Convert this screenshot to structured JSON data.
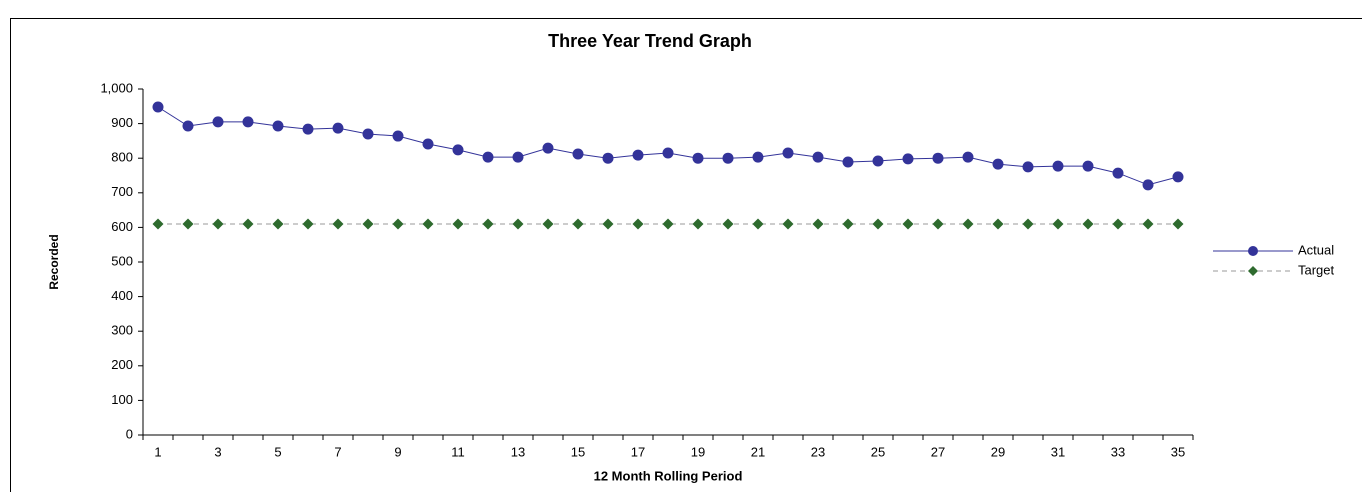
{
  "chart_data": {
    "type": "line",
    "title": "Three Year Trend Graph",
    "x_label": "12 Month Rolling Period",
    "y_label": "Recorded",
    "categories": [
      "1",
      null,
      "3",
      null,
      "5",
      null,
      "7",
      null,
      "9",
      null,
      "11",
      null,
      "13",
      null,
      "15",
      null,
      "17",
      null,
      "19",
      null,
      "21",
      null,
      "23",
      null,
      "25",
      null,
      "27",
      null,
      "29",
      null,
      "31",
      null,
      "33",
      null,
      "35"
    ],
    "series": [
      {
        "name": "Actual",
        "color": "#333399",
        "marker": "circle",
        "dashed": false,
        "values": [
          948,
          893,
          905,
          905,
          893,
          884,
          887,
          870,
          864,
          841,
          824,
          803,
          803,
          829,
          812,
          800,
          809,
          815,
          800,
          800,
          803,
          815,
          803,
          789,
          792,
          798,
          800,
          803,
          783,
          775,
          777,
          777,
          757,
          723,
          746
        ]
      },
      {
        "name": "Target",
        "color": "#2e6b2e",
        "marker": "diamond",
        "dashed": true,
        "values": [
          610,
          610,
          610,
          610,
          610,
          610,
          610,
          610,
          610,
          610,
          610,
          610,
          610,
          610,
          610,
          610,
          610,
          610,
          610,
          610,
          610,
          610,
          610,
          610,
          610,
          610,
          610,
          610,
          610,
          610,
          610,
          610,
          610,
          610,
          610
        ]
      }
    ],
    "ylim": [
      0,
      1000
    ],
    "yticks": [
      0,
      100,
      200,
      300,
      400,
      500,
      600,
      700,
      800,
      900,
      {
        "value": 1000,
        "label": "1,000"
      }
    ],
    "grid": false,
    "legend": "right"
  }
}
